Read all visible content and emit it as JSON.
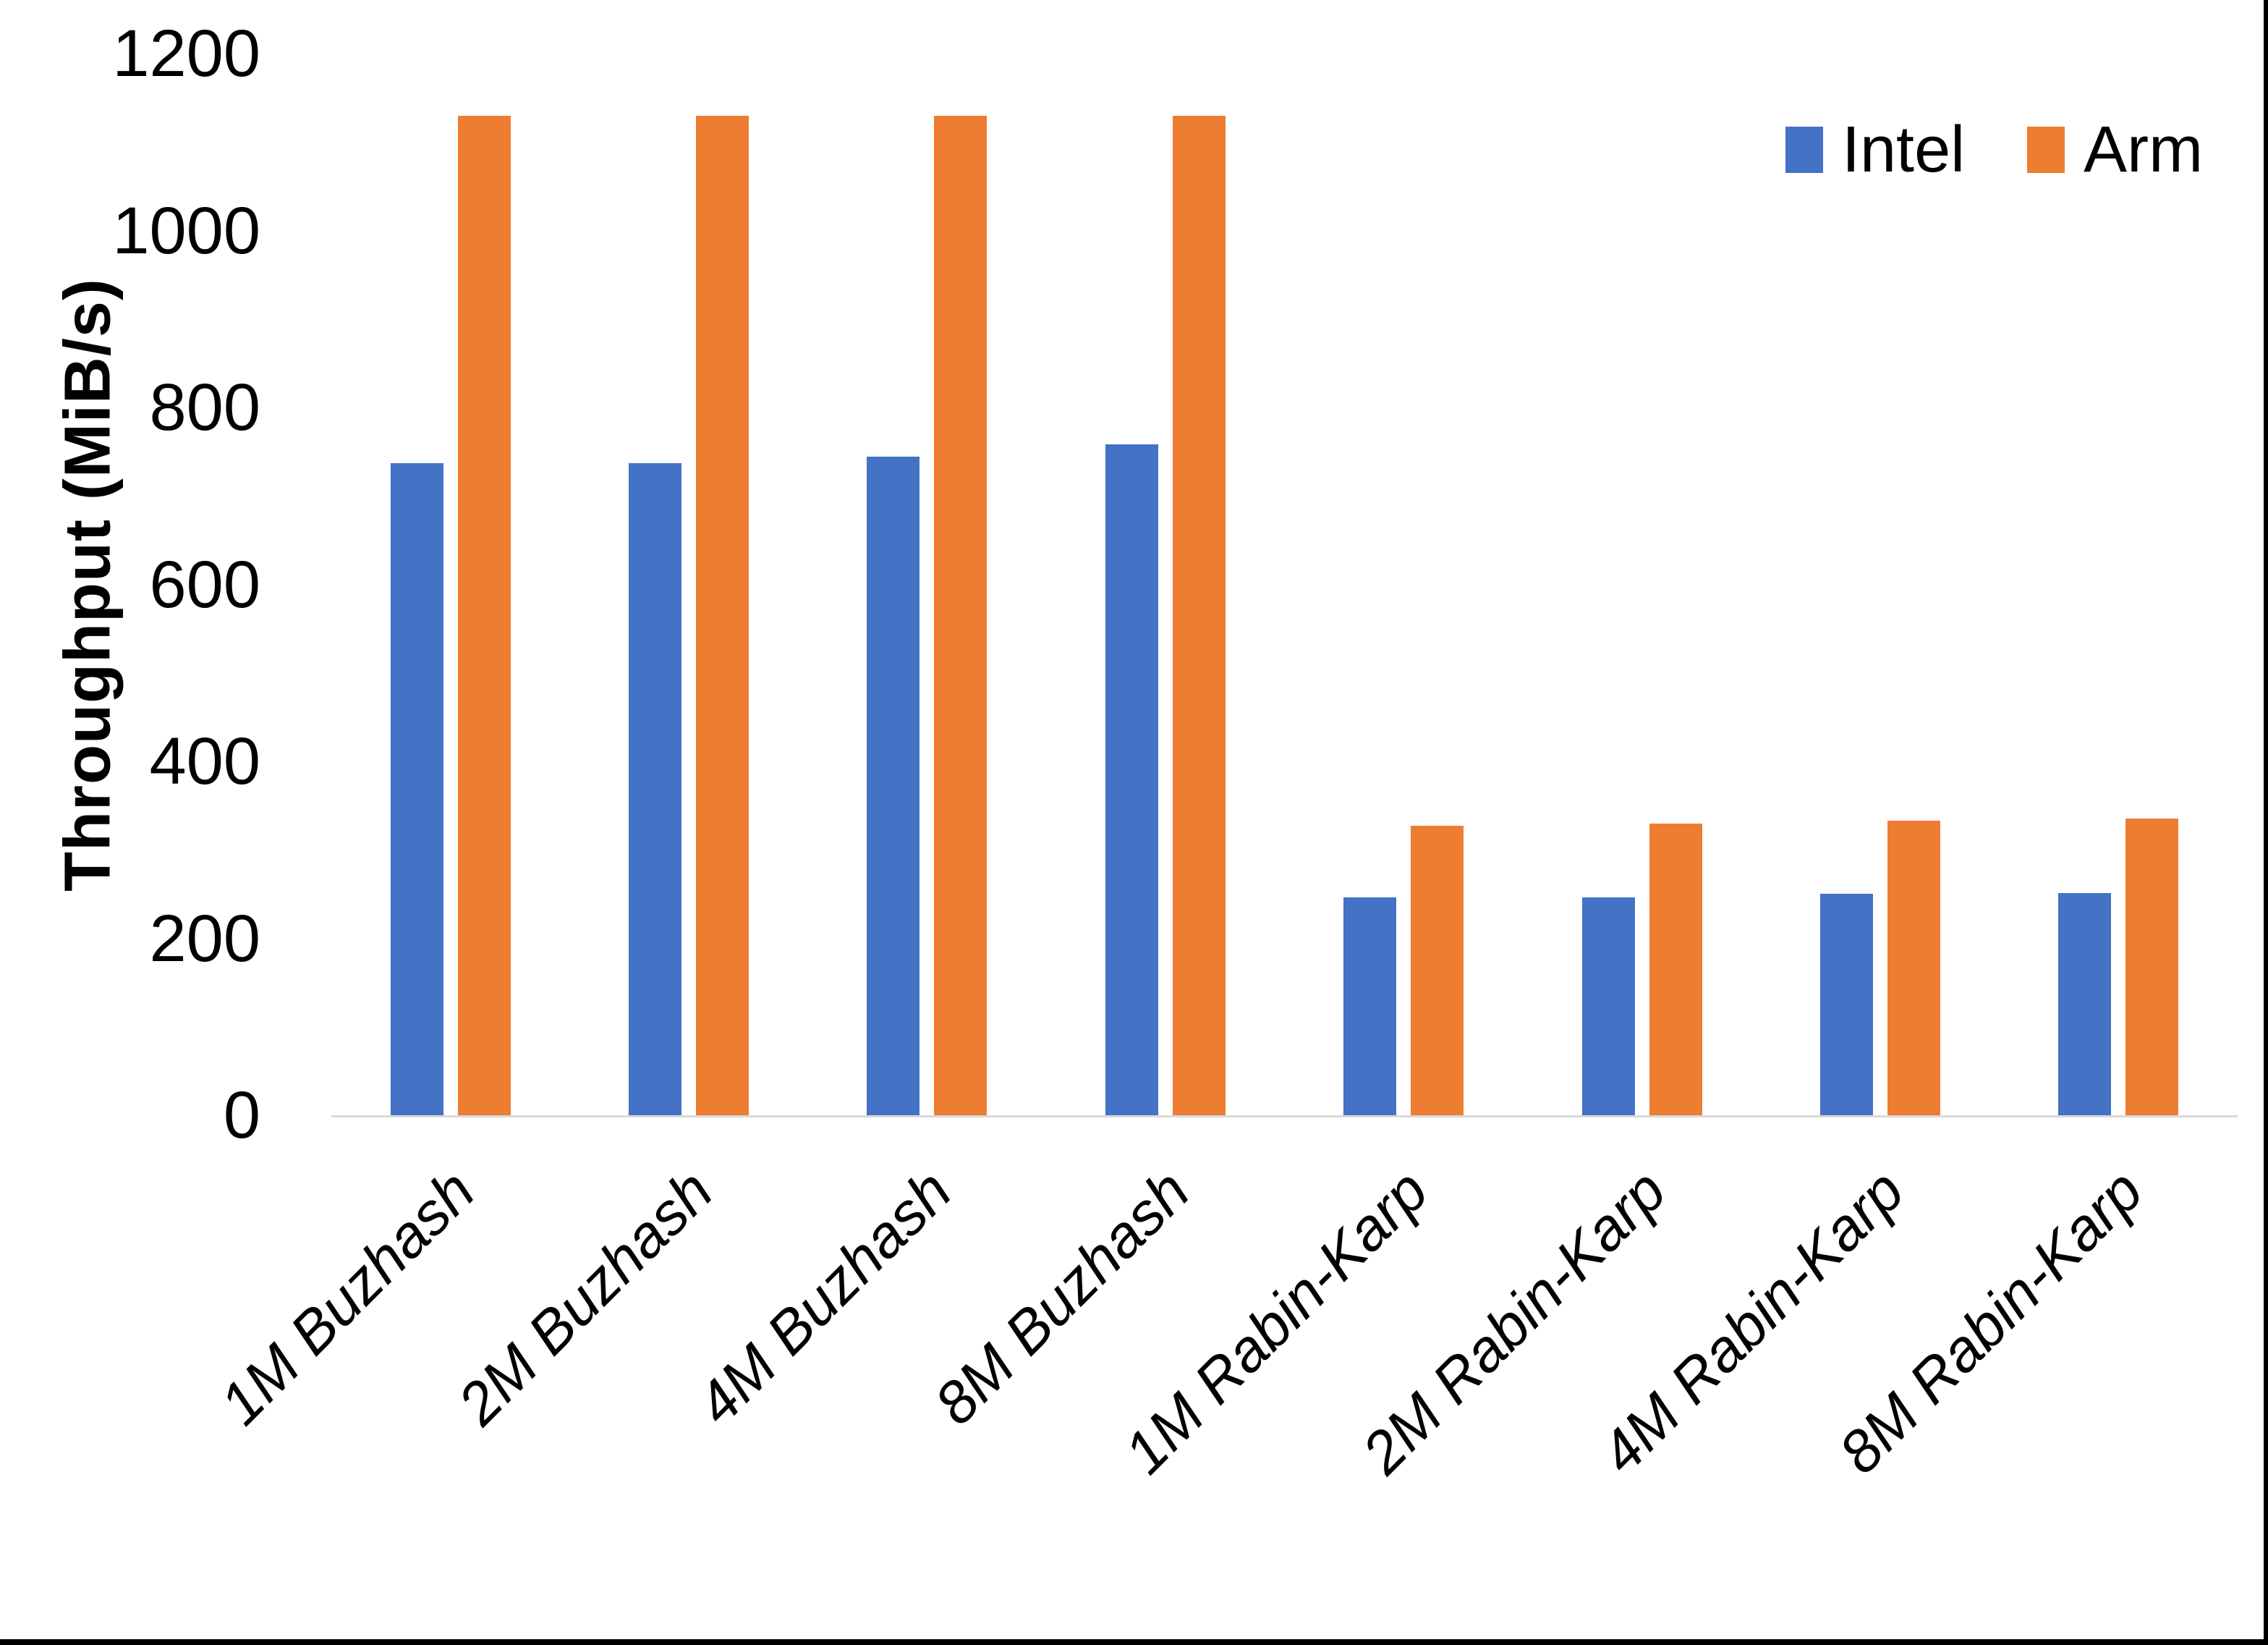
{
  "page": {
    "background": "#FFFFFF",
    "right_edge_color": "#000000",
    "bottom_edge_color": "#000000"
  },
  "axis": {
    "baseline_color": "#D9D9D9",
    "text_color": "#000000"
  },
  "chart_data": {
    "type": "bar",
    "title": "",
    "xlabel": "",
    "ylabel": "Throughput (MiB/s)",
    "ylim": [
      0,
      1200
    ],
    "yticks": [
      0,
      200,
      400,
      600,
      800,
      1000,
      1200
    ],
    "grid": false,
    "legend_position": "top-right",
    "categories": [
      "1M Buzhash",
      "2M Buzhash",
      "4M Buzhash",
      "8M Buzhash",
      "1M Rabin-Karp",
      "2M Rabin-Karp",
      "4M Rabin-Karp",
      "8M Rabin-Karp"
    ],
    "series": [
      {
        "name": "Intel",
        "color": "#4472C4",
        "values": [
          737,
          737,
          744,
          758,
          246,
          246,
          250,
          251
        ]
      },
      {
        "name": "Arm",
        "color": "#ED7D31",
        "values": [
          1130,
          1130,
          1130,
          1130,
          327,
          330,
          333,
          335
        ]
      }
    ]
  }
}
